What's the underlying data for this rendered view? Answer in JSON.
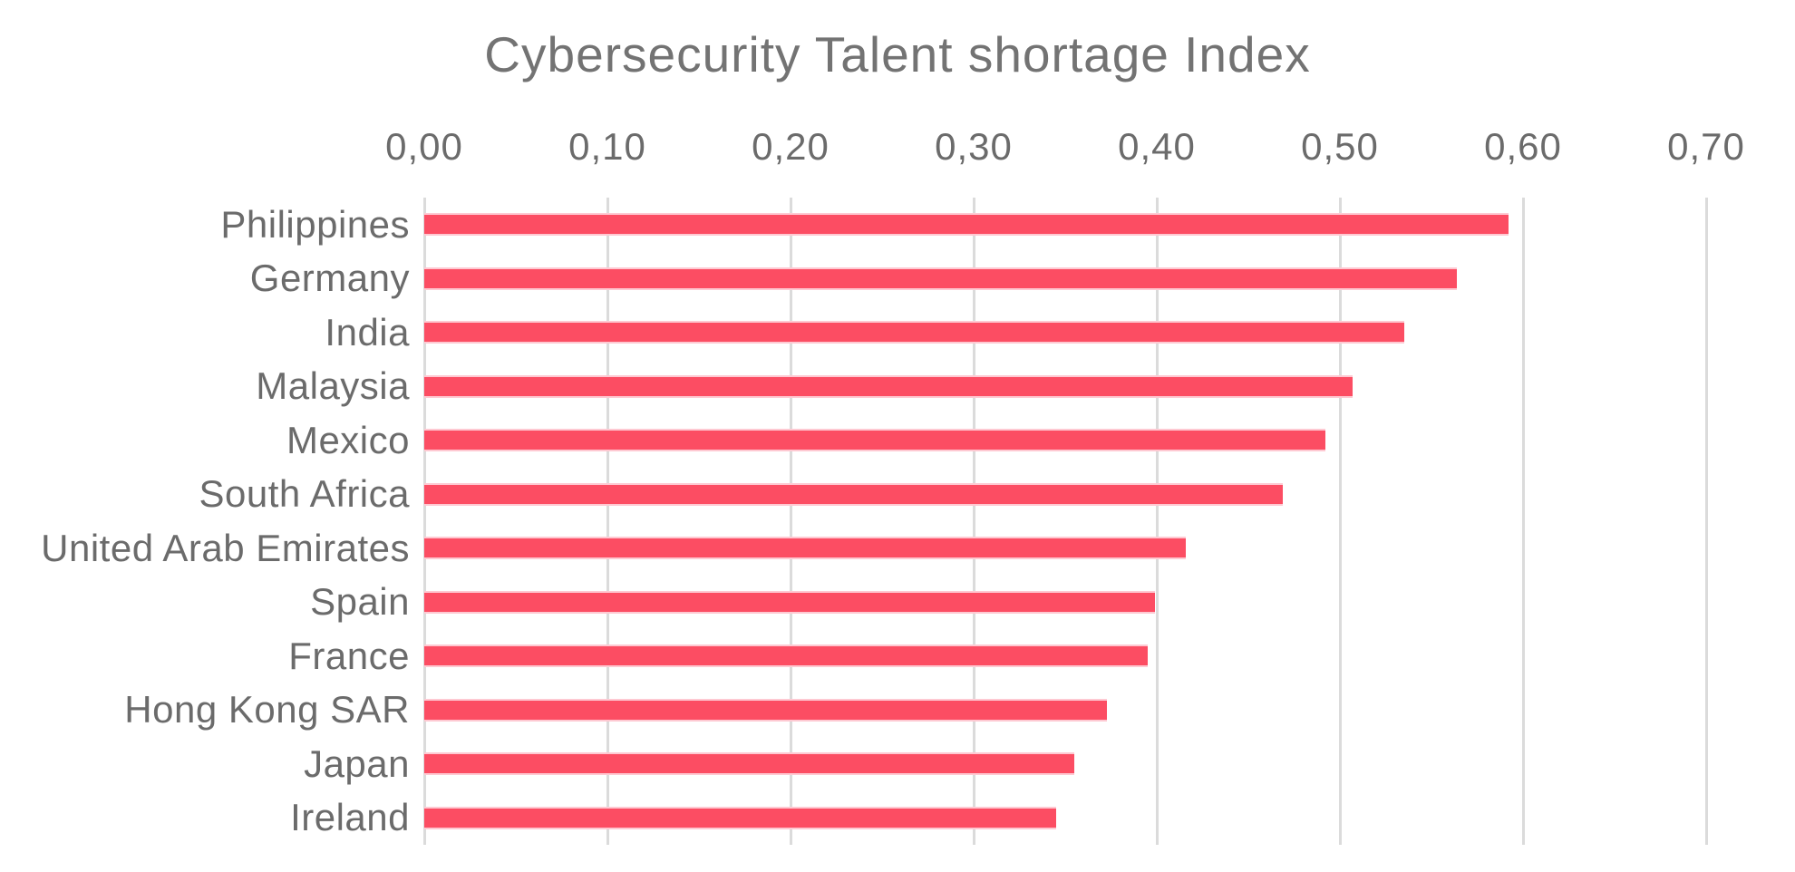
{
  "chart_data": {
    "type": "bar",
    "orientation": "horizontal",
    "title": "Cybersecurity Talent shortage Index",
    "categories": [
      "Philippines",
      "Germany",
      "India",
      "Malaysia",
      "Mexico",
      "South Africa",
      "United Arab Emirates",
      "Spain",
      "France",
      "Hong Kong SAR",
      "Japan",
      "Ireland"
    ],
    "values": [
      0.592,
      0.564,
      0.535,
      0.507,
      0.492,
      0.469,
      0.416,
      0.399,
      0.395,
      0.373,
      0.355,
      0.345
    ],
    "x_ticks": [
      "0,00",
      "0,10",
      "0,20",
      "0,30",
      "0,40",
      "0,50",
      "0,60",
      "0,70"
    ],
    "x_tick_values": [
      0.0,
      0.1,
      0.2,
      0.3,
      0.4,
      0.5,
      0.6,
      0.7
    ],
    "xlim": [
      0,
      0.7
    ],
    "decimal_separator": ",",
    "grid": true,
    "legend": false,
    "xlabel": "",
    "ylabel": "",
    "colors": {
      "bar": "#FC4D63",
      "bar_edge": "#FEC9D2",
      "gridline": "#DBDBDB",
      "tick_text": "#6B6B6B",
      "category_text": "#6B6B6B",
      "title_text": "#737373",
      "background": "#FFFFFF"
    }
  }
}
